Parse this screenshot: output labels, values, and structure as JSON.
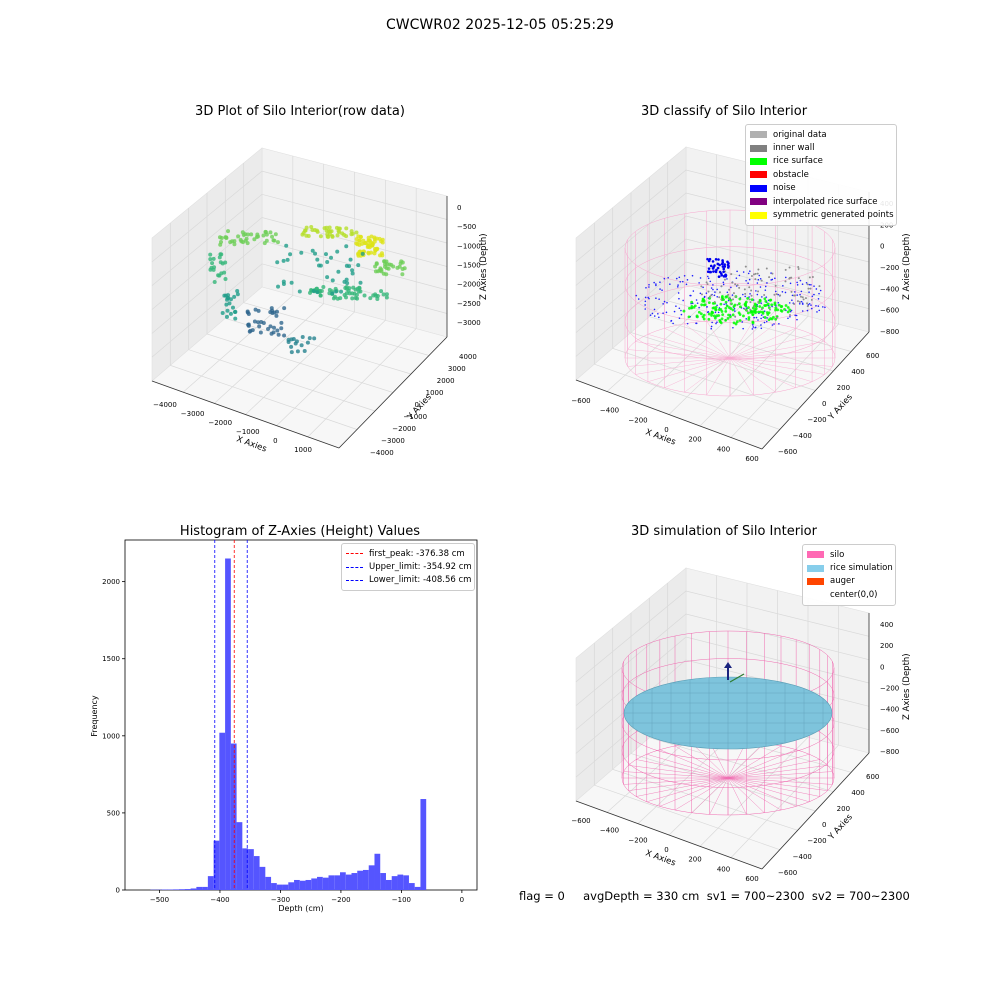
{
  "figure": {
    "suptitle": "CWCWR02 2025-12-05 05:25:29"
  },
  "panels": {
    "raw": {
      "title": "3D Plot of Silo Interior(row data)"
    },
    "classify": {
      "title": "3D classify of Silo Interior",
      "legend": [
        {
          "label": "original data",
          "color": "#b0b0b0"
        },
        {
          "label": "inner wall",
          "color": "#808080"
        },
        {
          "label": "rice surface",
          "color": "#00ff00"
        },
        {
          "label": "obstacle",
          "color": "#ff0000"
        },
        {
          "label": "noise",
          "color": "#0000ff"
        },
        {
          "label": "interpolated rice surface",
          "color": "#800080"
        },
        {
          "label": "symmetric generated points",
          "color": "#ffff00"
        }
      ]
    },
    "simulation": {
      "title": "3D simulation of Silo Interior",
      "legend": [
        {
          "label": "silo",
          "color": "#ff69b4"
        },
        {
          "label": "rice simulation",
          "color": "#87ceeb"
        },
        {
          "label": "auger",
          "color": "#ff4500"
        },
        {
          "label": "center(0,0)",
          "color": ""
        }
      ],
      "status": "flag = 0     avgDepth = 330 cm  sv1 = 700~2300  sv2 = 700~2300"
    }
  },
  "chart_data": [
    {
      "type": "scatter3d",
      "title": "3D Plot of Silo Interior(row data)",
      "xlabel": "X Axies",
      "ylabel": "Y Axies",
      "zlabel": "Z Axies (Depth)",
      "xticks": [
        "−4000",
        "−3000",
        "−2000",
        "−1000",
        "0",
        "1000"
      ],
      "yticks": [
        "−4000",
        "−3000",
        "−2000",
        "−1000",
        "0",
        "1000",
        "2000",
        "3000",
        "4000"
      ],
      "zticks": [
        "−3000",
        "−2500",
        "−2000",
        "−1500",
        "−1000",
        "−500",
        "0"
      ],
      "colormap": "viridis"
    },
    {
      "type": "scatter3d",
      "title": "3D classify of Silo Interior",
      "xlabel": "X Axies",
      "ylabel": "Y Axies",
      "zlabel": "Z Axies (Depth)",
      "xticks": [
        "−600",
        "−400",
        "−200",
        "0",
        "200",
        "400",
        "600"
      ],
      "yticks": [
        "−600",
        "−400",
        "−200",
        "0",
        "200",
        "400",
        "600"
      ],
      "zticks": [
        "−800",
        "−600",
        "−400",
        "−200",
        "0",
        "200",
        "400"
      ],
      "series": [
        "original data",
        "inner wall",
        "rice surface",
        "obstacle",
        "noise",
        "interpolated rice surface",
        "symmetric generated points"
      ]
    },
    {
      "type": "bar",
      "title": "Histogram of Z-Axies (Height) Values",
      "xlabel": "Depth (cm)",
      "ylabel": "Frequency",
      "xlim": [
        -557,
        25
      ],
      "ylim": [
        0,
        2270
      ],
      "xticks": [
        -500,
        -400,
        -300,
        -200,
        -100,
        0
      ],
      "xticklabels": [
        "−500",
        "−400",
        "−300",
        "−200",
        "−100",
        "0"
      ],
      "yticks": [
        0,
        500,
        1000,
        1500,
        2000
      ],
      "bin_width": 9.5,
      "bins": [
        [
          -515,
          2
        ],
        [
          -505.5,
          2
        ],
        [
          -496,
          3
        ],
        [
          -486.5,
          3
        ],
        [
          -477,
          4
        ],
        [
          -467.5,
          5
        ],
        [
          -458,
          6
        ],
        [
          -448.5,
          10
        ],
        [
          -439,
          20
        ],
        [
          -429.5,
          20
        ],
        [
          -420,
          90
        ],
        [
          -410.5,
          320
        ],
        [
          -401,
          1020
        ],
        [
          -391.5,
          2150
        ],
        [
          -382,
          950
        ],
        [
          -372.5,
          440
        ],
        [
          -363,
          270
        ],
        [
          -353.5,
          265
        ],
        [
          -344,
          220
        ],
        [
          -334.5,
          150
        ],
        [
          -325,
          85
        ],
        [
          -315.5,
          45
        ],
        [
          -306,
          35
        ],
        [
          -296.5,
          35
        ],
        [
          -287,
          50
        ],
        [
          -277.5,
          65
        ],
        [
          -268,
          60
        ],
        [
          -258.5,
          65
        ],
        [
          -249,
          75
        ],
        [
          -239.5,
          85
        ],
        [
          -230,
          80
        ],
        [
          -220.5,
          95
        ],
        [
          -211,
          95
        ],
        [
          -201.5,
          115
        ],
        [
          -192,
          100
        ],
        [
          -182.5,
          110
        ],
        [
          -173,
          125
        ],
        [
          -163.5,
          130
        ],
        [
          -154,
          160
        ],
        [
          -144.5,
          235
        ],
        [
          -135,
          110
        ],
        [
          -125.5,
          65
        ],
        [
          -116,
          90
        ],
        [
          -106.5,
          100
        ],
        [
          -97,
          95
        ],
        [
          -87.5,
          45
        ],
        [
          -78,
          20
        ],
        [
          -68.5,
          590
        ]
      ],
      "lines": [
        {
          "name": "first_peak: -376.38 cm",
          "value": -376.38,
          "color": "#ff0000"
        },
        {
          "name": "Upper_limit: -354.92 cm",
          "value": -354.92,
          "color": "#0000ff"
        },
        {
          "name": "Lower_limit: -408.56 cm",
          "value": -408.56,
          "color": "#0000ff"
        }
      ]
    },
    {
      "type": "surface3d",
      "title": "3D simulation of Silo Interior",
      "xlabel": "X Axies",
      "ylabel": "Y Axies",
      "zlabel": "Z Axies (Depth)",
      "xticks": [
        "−600",
        "−400",
        "−200",
        "0",
        "200",
        "400",
        "600"
      ],
      "yticks": [
        "−600",
        "−400",
        "−200",
        "0",
        "200",
        "400",
        "600"
      ],
      "zticks": [
        "−800",
        "−600",
        "−400",
        "−200",
        "0",
        "200",
        "400"
      ],
      "series": [
        "silo",
        "rice simulation",
        "auger",
        "center(0,0)"
      ]
    }
  ]
}
